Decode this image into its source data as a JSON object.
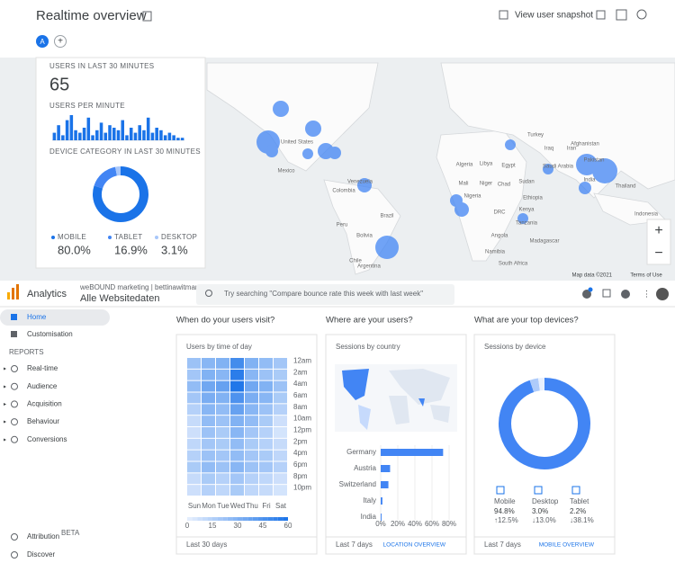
{
  "realtime": {
    "title": "Realtime overview",
    "snapshot": "View user snapshot",
    "avatar": "A",
    "users_label": "USERS IN LAST 30 MINUTES",
    "users_value": "65",
    "per_minute_label": "USERS PER MINUTE",
    "per_minute": [
      3,
      6,
      2,
      8,
      10,
      4,
      3,
      5,
      9,
      2,
      4,
      7,
      3,
      6,
      5,
      4,
      8,
      2,
      5,
      3,
      6,
      4,
      9,
      3,
      5,
      4,
      2,
      3,
      2,
      1,
      1
    ],
    "device_label": "DEVICE CATEGORY IN LAST 30 MINUTES",
    "devices": [
      {
        "name": "MOBILE",
        "value": 80.0,
        "label": "80.0%",
        "color": "#1a73e8"
      },
      {
        "name": "TABLET",
        "value": 16.9,
        "label": "16.9%",
        "color": "#4285f4"
      },
      {
        "name": "DESKTOP",
        "value": 3.1,
        "label": "3.1%",
        "color": "#a8c7fa"
      }
    ]
  },
  "map": {
    "labels": [
      "United States",
      "Mexico",
      "Venezuela",
      "Colombia",
      "Peru",
      "Brazil",
      "Bolivia",
      "Chile",
      "Argentina",
      "Algeria",
      "Libya",
      "Egypt",
      "Mali",
      "Niger",
      "Chad",
      "Sudan",
      "Nigeria",
      "Ethiopia",
      "DRC",
      "Kenya",
      "Tanzania",
      "Angola",
      "Namibia",
      "South Africa",
      "Madagascar",
      "Turkey",
      "Iraq",
      "Iran",
      "Saudi Arabia",
      "Afghanistan",
      "Pakistan",
      "India",
      "Thailand",
      "Indonesia"
    ],
    "footer": [
      "Map data ©2021",
      "Terms of Use"
    ],
    "zoom": [
      "+",
      "−"
    ]
  },
  "ua": {
    "product": "Analytics",
    "account": "weBOUND marketing | bettinawitmann.com",
    "property": "Alle Websitedaten",
    "search": "Try searching \"Compare bounce rate this week with last week\"",
    "nav": [
      "Home",
      "Customisation"
    ],
    "reports_label": "REPORTS",
    "reports": [
      "Real-time",
      "Audience",
      "Acquisition",
      "Behaviour",
      "Conversions"
    ],
    "footer_nav": [
      {
        "name": "Attribution",
        "badge": "BETA"
      },
      {
        "name": "Discover"
      }
    ],
    "time_card": {
      "heading": "When do your users visit?",
      "title": "Users by time of day",
      "days": [
        "Sun",
        "Mon",
        "Tue",
        "Wed",
        "Thu",
        "Fri",
        "Sat"
      ],
      "hours": [
        "12am",
        "2am",
        "4am",
        "6am",
        "8am",
        "10am",
        "12pm",
        "2pm",
        "4pm",
        "6pm",
        "8pm",
        "10pm"
      ],
      "values": [
        [
          22,
          28,
          30,
          48,
          30,
          25,
          20
        ],
        [
          20,
          30,
          28,
          55,
          28,
          22,
          18
        ],
        [
          25,
          35,
          38,
          58,
          35,
          30,
          22
        ],
        [
          20,
          32,
          30,
          45,
          32,
          28,
          18
        ],
        [
          15,
          28,
          25,
          38,
          28,
          22,
          15
        ],
        [
          10,
          25,
          22,
          30,
          25,
          18,
          8
        ],
        [
          8,
          22,
          18,
          28,
          20,
          15,
          6
        ],
        [
          12,
          20,
          18,
          25,
          18,
          15,
          10
        ],
        [
          15,
          22,
          20,
          25,
          20,
          18,
          12
        ],
        [
          18,
          25,
          22,
          28,
          22,
          20,
          15
        ],
        [
          10,
          18,
          15,
          20,
          15,
          12,
          8
        ],
        [
          8,
          15,
          12,
          18,
          12,
          10,
          6
        ]
      ],
      "scale_ticks": [
        0,
        15,
        30,
        45,
        60
      ],
      "footer": "Last 30 days"
    },
    "country_card": {
      "heading": "Where are your users?",
      "title": "Sessions by country",
      "categories": [
        "Germany",
        "Austria",
        "Switzerland",
        "Italy",
        "India"
      ],
      "values": [
        73,
        11,
        9,
        2,
        1
      ],
      "xlim": [
        0,
        80
      ],
      "xticks": [
        {
          "value": 0,
          "label": "0%"
        },
        {
          "value": 20,
          "label": "20%"
        },
        {
          "value": 40,
          "label": "40%"
        },
        {
          "value": 60,
          "label": "60%"
        },
        {
          "value": 80,
          "label": "80%"
        }
      ],
      "footer": "Last 7 days",
      "link": "LOCATION OVERVIEW"
    },
    "device_card": {
      "heading": "What are your top devices?",
      "title": "Sessions by device",
      "devices": [
        {
          "name": "Mobile",
          "value": 94.8,
          "label": "94.8%",
          "change": "↑12.5%",
          "color": "#4285f4"
        },
        {
          "name": "Desktop",
          "value": 3.0,
          "label": "3.0%",
          "change": "↓13.0%",
          "color": "#aecbfa"
        },
        {
          "name": "Tablet",
          "value": 2.2,
          "label": "2.2%",
          "change": "↓38.1%",
          "color": "#e8f0fe"
        }
      ],
      "footer": "Last 7 days",
      "link": "MOBILE OVERVIEW"
    }
  }
}
